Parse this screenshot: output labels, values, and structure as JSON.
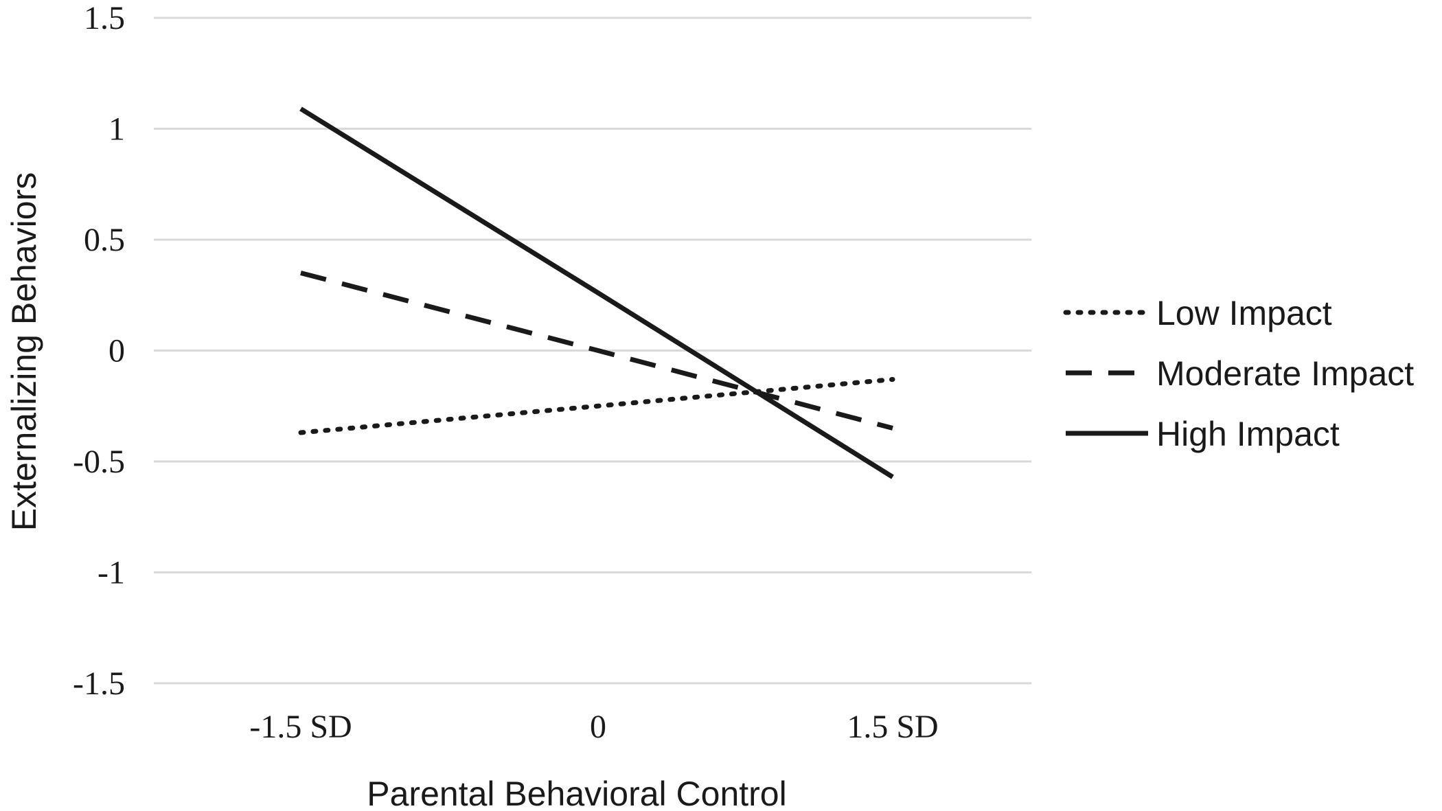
{
  "chart_data": {
    "type": "line",
    "title": "",
    "xlabel": "Parental Behavioral Control",
    "ylabel": "Externalizing Behaviors",
    "categories": [
      "-1.5 SD",
      "0",
      "1.5 SD"
    ],
    "x_label_texts": [
      "-1.5 SD",
      "0",
      "1.5 SD"
    ],
    "ylim": [
      -1.5,
      1.5
    ],
    "yticks": [
      1.5,
      1,
      0.5,
      0,
      -0.5,
      -1,
      -1.5
    ],
    "ytick_labels": [
      "1.5",
      "1",
      "0.5",
      "0",
      "-0.5",
      "-1",
      "-1.5"
    ],
    "grid": true,
    "legend_position": "right",
    "series": [
      {
        "name": "Low Impact",
        "style": "dotted",
        "values": [
          -0.37,
          -0.25,
          -0.13
        ]
      },
      {
        "name": "Moderate Impact",
        "style": "dashed",
        "values": [
          0.35,
          0.0,
          -0.35
        ]
      },
      {
        "name": "High Impact",
        "style": "solid",
        "values": [
          1.09,
          0.26,
          -0.57
        ]
      }
    ],
    "colors": {
      "line": "#1a1a1a",
      "grid": "#d9d9d9"
    }
  }
}
